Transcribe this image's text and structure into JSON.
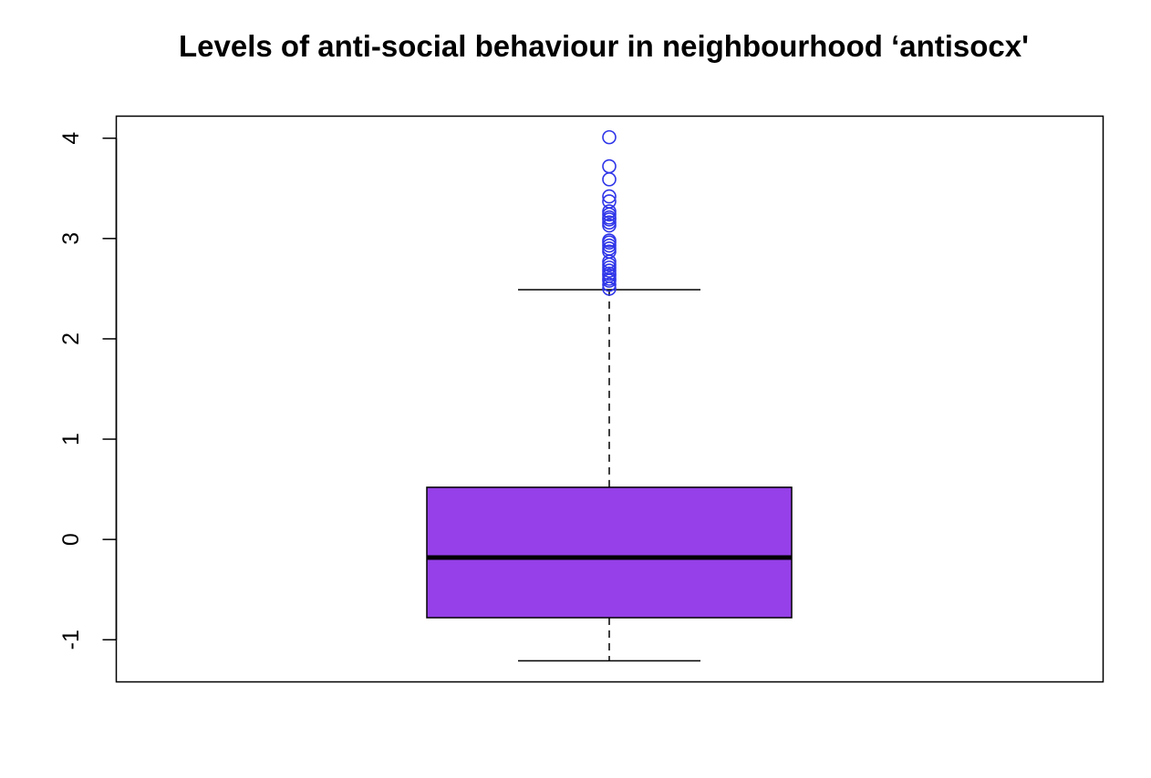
{
  "chart_data": {
    "type": "box",
    "title": "Levels of anti-social behaviour in neighbourhood ‘antisocx'",
    "xlabel": "",
    "ylabel": "",
    "ylim": [
      -1.42,
      4.22
    ],
    "y_ticks": [
      -1,
      0,
      1,
      2,
      3,
      4
    ],
    "y_tick_labels": [
      "-1",
      "0",
      "1",
      "2",
      "3",
      "4"
    ],
    "grid": false,
    "box": {
      "whisker_low": -1.21,
      "q1": -0.78,
      "median": -0.18,
      "q3": 0.52,
      "whisker_high": 2.49
    },
    "outliers": [
      2.5,
      2.54,
      2.58,
      2.6,
      2.63,
      2.65,
      2.68,
      2.71,
      2.74,
      2.77,
      2.87,
      2.9,
      2.93,
      2.96,
      2.98,
      3.13,
      3.16,
      3.19,
      3.21,
      3.24,
      3.27,
      3.37,
      3.42,
      3.59,
      3.72,
      4.01
    ],
    "colors": {
      "box_fill": "#9540E8",
      "outlier_stroke": "#2E35E8",
      "line": "#000000"
    }
  }
}
